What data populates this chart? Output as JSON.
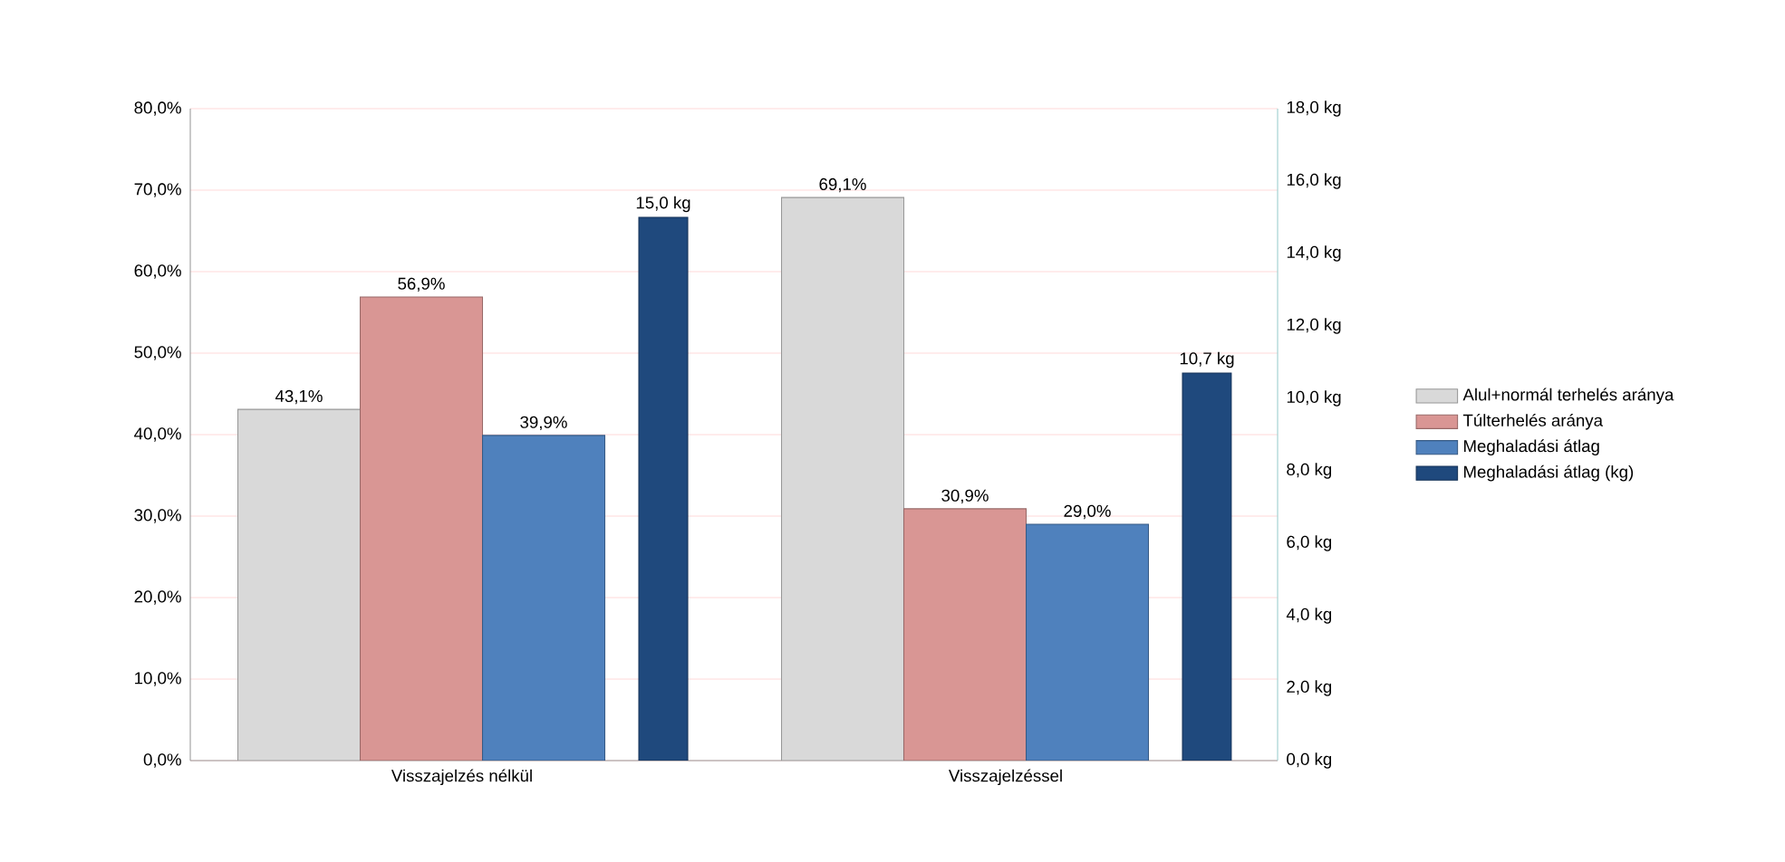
{
  "chart_data": {
    "type": "bar",
    "categories": [
      "Visszajelzés nélkül",
      "Visszajelzéssel"
    ],
    "series": [
      {
        "name": "Alul+normál terhelés aránya",
        "color": "#d9d9d9",
        "values": [
          43.1,
          69.1
        ],
        "value_labels": [
          "43,1%",
          "69,1%"
        ]
      },
      {
        "name": "Túlterhelés aránya",
        "color": "#d99694",
        "values": [
          56.9,
          30.9
        ],
        "value_labels": [
          "56,9%",
          "30,9%"
        ]
      },
      {
        "name": "Meghaladási átlag",
        "color": "#4f81bd",
        "values": [
          39.9,
          29.0
        ],
        "value_labels": [
          "39,9%",
          "29,0%"
        ]
      },
      {
        "name": "Meghaladási átlag (kg)",
        "color": "#1f497d",
        "values": [
          15.0,
          10.7
        ],
        "value_labels": [
          "15,0 kg",
          "10,7 kg"
        ],
        "axis": "y2"
      }
    ],
    "ylim": [
      0,
      80
    ],
    "yticks": [
      {
        "value": 0,
        "label": "0,0%"
      },
      {
        "value": 10,
        "label": "10,0%"
      },
      {
        "value": 20,
        "label": "20,0%"
      },
      {
        "value": 30,
        "label": "30,0%"
      },
      {
        "value": 40,
        "label": "40,0%"
      },
      {
        "value": 50,
        "label": "50,0%"
      },
      {
        "value": 60,
        "label": "60,0%"
      },
      {
        "value": 70,
        "label": "70,0%"
      },
      {
        "value": 80,
        "label": "80,0%"
      }
    ],
    "y2lim": [
      0,
      18
    ],
    "y2ticks": [
      {
        "value": 0,
        "label": "0,0 kg"
      },
      {
        "value": 2,
        "label": "2,0 kg"
      },
      {
        "value": 4,
        "label": "4,0 kg"
      },
      {
        "value": 6,
        "label": "6,0 kg"
      },
      {
        "value": 8,
        "label": "8,0 kg"
      },
      {
        "value": 10,
        "label": "10,0 kg"
      },
      {
        "value": 12,
        "label": "12,0 kg"
      },
      {
        "value": 14,
        "label": "14,0 kg"
      },
      {
        "value": 16,
        "label": "16,0 kg"
      },
      {
        "value": 18,
        "label": "18,0 kg"
      }
    ],
    "grid": "y",
    "legend": "right"
  }
}
